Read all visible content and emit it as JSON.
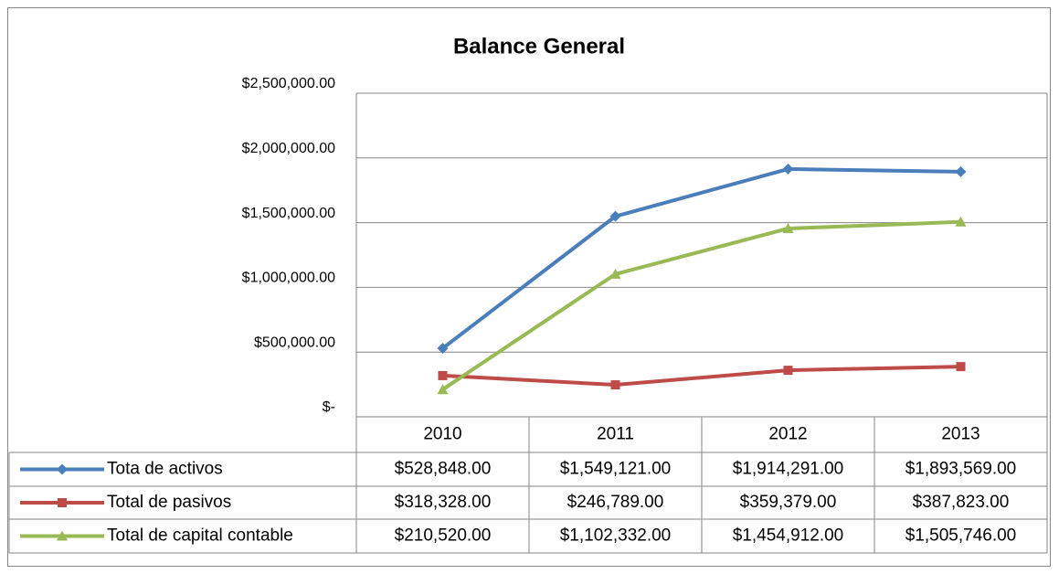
{
  "chart_data": {
    "type": "line",
    "title": "Balance General",
    "categories": [
      "2010",
      "2011",
      "2012",
      "2013"
    ],
    "series": [
      {
        "name": "Tota de activos",
        "color": "#4a7ebb",
        "marker": "diamond",
        "values": [
          528848,
          1549121,
          1914291,
          1893569
        ],
        "value_labels": [
          "$528,848.00",
          "$1,549,121.00",
          "$1,914,291.00",
          "$1,893,569.00"
        ]
      },
      {
        "name": "Total de pasivos",
        "color": "#be4b48",
        "marker": "square",
        "values": [
          318328,
          246789,
          359379,
          387823
        ],
        "value_labels": [
          "$318,328.00",
          "$246,789.00",
          "$359,379.00",
          "$387,823.00"
        ]
      },
      {
        "name": "Total de capital contable",
        "color": "#98b954",
        "marker": "triangle",
        "values": [
          210520,
          1102332,
          1454912,
          1505746
        ],
        "value_labels": [
          "$210,520.00",
          "$1,102,332.00",
          "$1,454,912.00",
          "$1,505,746.00"
        ]
      }
    ],
    "ylim": [
      0,
      2500000
    ],
    "yticks": [
      {
        "value": 0,
        "label": "$-"
      },
      {
        "value": 500000,
        "label": "$500,000.00"
      },
      {
        "value": 1000000,
        "label": "$1,000,000.00"
      },
      {
        "value": 1500000,
        "label": "$1,500,000.00"
      },
      {
        "value": 2000000,
        "label": "$2,000,000.00"
      },
      {
        "value": 2500000,
        "label": "$2,500,000.00"
      }
    ],
    "grid": true,
    "data_table": true
  }
}
